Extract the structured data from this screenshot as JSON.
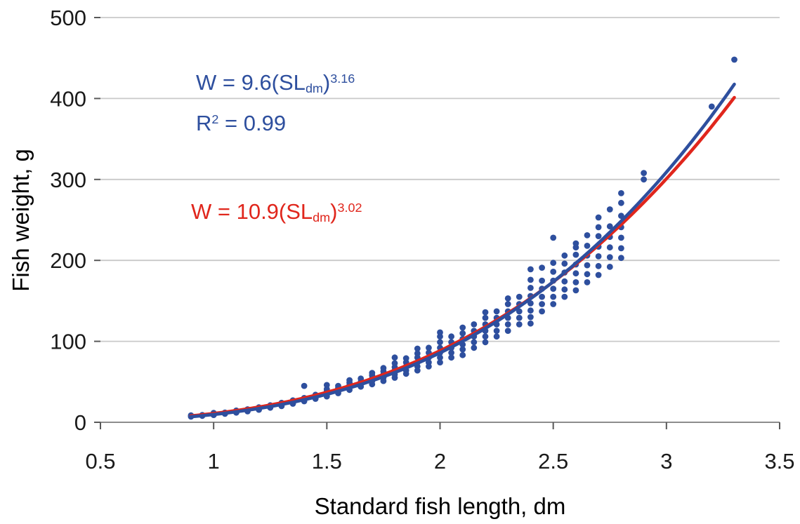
{
  "chart_data": {
    "type": "scatter",
    "title": "",
    "xlabel": "Standard fish length, dm",
    "ylabel": "Fish weight, g",
    "xlim": [
      0.5,
      3.5
    ],
    "ylim": [
      0,
      500
    ],
    "x_ticks": [
      0.5,
      1,
      1.5,
      2,
      2.5,
      3,
      3.5
    ],
    "x_tick_labels": [
      "0.5",
      "1",
      "1.5",
      "2",
      "2.5",
      "3",
      "3.5"
    ],
    "y_ticks": [
      0,
      100,
      200,
      300,
      400,
      500
    ],
    "y_tick_labels": [
      "0",
      "100",
      "200",
      "300",
      "400",
      "500"
    ],
    "grid": "horizontal",
    "legend": "none",
    "annotation_texts": [
      "W = 9.6(SLdm)^3.16",
      "R^2 = 0.99",
      "W = 10.9(SLdm)^3.02"
    ],
    "series": [
      {
        "name": "fish-observations",
        "type": "scatter",
        "color": "#2e4f9e",
        "marker": "circle",
        "points": [
          [
            0.9,
            7
          ],
          [
            0.9,
            8.5
          ],
          [
            0.95,
            8
          ],
          [
            0.95,
            9
          ],
          [
            1.0,
            9
          ],
          [
            1.0,
            10
          ],
          [
            1.0,
            11.5
          ],
          [
            1.05,
            10.5
          ],
          [
            1.05,
            12
          ],
          [
            1.1,
            12
          ],
          [
            1.1,
            13
          ],
          [
            1.1,
            14.5
          ],
          [
            1.15,
            13.5
          ],
          [
            1.15,
            15
          ],
          [
            1.15,
            16
          ],
          [
            1.2,
            15.5
          ],
          [
            1.2,
            17
          ],
          [
            1.2,
            18.5
          ],
          [
            1.25,
            18
          ],
          [
            1.25,
            19.5
          ],
          [
            1.25,
            21
          ],
          [
            1.3,
            20
          ],
          [
            1.3,
            22
          ],
          [
            1.3,
            24
          ],
          [
            1.35,
            23
          ],
          [
            1.35,
            25
          ],
          [
            1.35,
            27
          ],
          [
            1.4,
            26
          ],
          [
            1.4,
            28
          ],
          [
            1.4,
            30
          ],
          [
            1.4,
            45
          ],
          [
            1.45,
            29
          ],
          [
            1.45,
            31.5
          ],
          [
            1.45,
            34
          ],
          [
            1.5,
            32
          ],
          [
            1.5,
            35
          ],
          [
            1.5,
            38
          ],
          [
            1.5,
            41
          ],
          [
            1.5,
            46
          ],
          [
            1.55,
            36
          ],
          [
            1.55,
            39
          ],
          [
            1.55,
            42
          ],
          [
            1.55,
            45
          ],
          [
            1.6,
            40
          ],
          [
            1.6,
            43
          ],
          [
            1.6,
            46
          ],
          [
            1.6,
            49
          ],
          [
            1.6,
            52
          ],
          [
            1.65,
            44
          ],
          [
            1.65,
            47
          ],
          [
            1.65,
            50
          ],
          [
            1.65,
            54
          ],
          [
            1.7,
            47
          ],
          [
            1.7,
            51
          ],
          [
            1.7,
            54
          ],
          [
            1.7,
            58
          ],
          [
            1.7,
            61
          ],
          [
            1.75,
            51
          ],
          [
            1.75,
            55
          ],
          [
            1.75,
            59
          ],
          [
            1.75,
            63
          ],
          [
            1.75,
            67
          ],
          [
            1.8,
            55
          ],
          [
            1.8,
            59
          ],
          [
            1.8,
            64
          ],
          [
            1.8,
            68
          ],
          [
            1.8,
            73
          ],
          [
            1.8,
            80
          ],
          [
            1.85,
            60
          ],
          [
            1.85,
            64
          ],
          [
            1.85,
            69
          ],
          [
            1.85,
            74
          ],
          [
            1.85,
            79
          ],
          [
            1.9,
            64
          ],
          [
            1.9,
            69
          ],
          [
            1.9,
            74
          ],
          [
            1.9,
            80
          ],
          [
            1.9,
            85
          ],
          [
            1.9,
            91
          ],
          [
            1.95,
            69
          ],
          [
            1.95,
            74
          ],
          [
            1.95,
            80
          ],
          [
            1.95,
            86
          ],
          [
            1.95,
            92
          ],
          [
            2.0,
            74
          ],
          [
            2.0,
            80
          ],
          [
            2.0,
            86
          ],
          [
            2.0,
            92
          ],
          [
            2.0,
            99
          ],
          [
            2.0,
            106
          ],
          [
            2.0,
            111
          ],
          [
            2.05,
            80
          ],
          [
            2.05,
            86
          ],
          [
            2.05,
            92
          ],
          [
            2.05,
            99
          ],
          [
            2.05,
            106
          ],
          [
            2.1,
            83
          ],
          [
            2.1,
            90
          ],
          [
            2.1,
            96
          ],
          [
            2.1,
            103
          ],
          [
            2.1,
            110
          ],
          [
            2.1,
            117
          ],
          [
            2.15,
            92
          ],
          [
            2.15,
            99
          ],
          [
            2.15,
            106
          ],
          [
            2.15,
            113
          ],
          [
            2.15,
            121
          ],
          [
            2.2,
            99
          ],
          [
            2.2,
            106
          ],
          [
            2.2,
            113
          ],
          [
            2.2,
            121
          ],
          [
            2.2,
            129
          ],
          [
            2.2,
            136
          ],
          [
            2.25,
            106
          ],
          [
            2.25,
            113
          ],
          [
            2.25,
            121
          ],
          [
            2.25,
            129
          ],
          [
            2.25,
            137
          ],
          [
            2.3,
            113
          ],
          [
            2.3,
            121
          ],
          [
            2.3,
            129
          ],
          [
            2.3,
            137
          ],
          [
            2.3,
            146
          ],
          [
            2.3,
            153
          ],
          [
            2.35,
            121
          ],
          [
            2.35,
            129
          ],
          [
            2.35,
            137
          ],
          [
            2.35,
            146
          ],
          [
            2.35,
            155
          ],
          [
            2.4,
            122
          ],
          [
            2.4,
            130
          ],
          [
            2.4,
            138
          ],
          [
            2.4,
            147
          ],
          [
            2.4,
            156
          ],
          [
            2.4,
            166
          ],
          [
            2.4,
            176
          ],
          [
            2.4,
            189
          ],
          [
            2.45,
            137
          ],
          [
            2.45,
            146
          ],
          [
            2.45,
            155
          ],
          [
            2.45,
            165
          ],
          [
            2.45,
            175
          ],
          [
            2.45,
            191
          ],
          [
            2.5,
            146
          ],
          [
            2.5,
            155
          ],
          [
            2.5,
            165
          ],
          [
            2.5,
            175
          ],
          [
            2.5,
            186
          ],
          [
            2.5,
            197
          ],
          [
            2.5,
            228
          ],
          [
            2.55,
            155
          ],
          [
            2.55,
            164
          ],
          [
            2.55,
            174
          ],
          [
            2.55,
            185
          ],
          [
            2.55,
            196
          ],
          [
            2.55,
            206
          ],
          [
            2.6,
            163
          ],
          [
            2.6,
            173
          ],
          [
            2.6,
            184
          ],
          [
            2.6,
            195
          ],
          [
            2.6,
            207
          ],
          [
            2.6,
            216
          ],
          [
            2.6,
            221
          ],
          [
            2.65,
            173
          ],
          [
            2.65,
            183
          ],
          [
            2.65,
            194
          ],
          [
            2.65,
            206
          ],
          [
            2.65,
            218
          ],
          [
            2.65,
            231
          ],
          [
            2.7,
            182
          ],
          [
            2.7,
            193
          ],
          [
            2.7,
            205
          ],
          [
            2.7,
            217
          ],
          [
            2.7,
            230
          ],
          [
            2.7,
            241
          ],
          [
            2.7,
            253
          ],
          [
            2.75,
            192
          ],
          [
            2.75,
            204
          ],
          [
            2.75,
            216
          ],
          [
            2.75,
            229
          ],
          [
            2.75,
            242
          ],
          [
            2.75,
            263
          ],
          [
            2.8,
            203
          ],
          [
            2.8,
            215
          ],
          [
            2.8,
            228
          ],
          [
            2.8,
            241
          ],
          [
            2.8,
            255
          ],
          [
            2.8,
            271
          ],
          [
            2.8,
            283
          ],
          [
            2.9,
            300
          ],
          [
            2.9,
            308
          ],
          [
            3.2,
            390
          ],
          [
            3.3,
            448
          ]
        ]
      },
      {
        "name": "power-fit-red",
        "type": "power_curve",
        "color": "#e0261c",
        "coefficient": 10.9,
        "exponent": 3.02,
        "x_range": [
          0.9,
          3.3
        ],
        "equation_text": "W = 10.9(SLdm)^3.02"
      },
      {
        "name": "power-fit-blue",
        "type": "power_curve",
        "color": "#2e4f9e",
        "coefficient": 9.6,
        "exponent": 3.16,
        "r_squared": 0.99,
        "x_range": [
          0.9,
          3.3
        ],
        "equation_text": "W = 9.6(SLdm)^3.16"
      }
    ]
  },
  "axes": {
    "xlabel": "Standard fish length, dm",
    "ylabel": "Fish weight, g"
  },
  "annotations": {
    "blue_eq": {
      "pre": "W = 9.6(SL",
      "sub": "dm",
      "close": ")",
      "sup": "3.16"
    },
    "r2": {
      "base": "R",
      "sup": "2",
      "rest": " = 0.99"
    },
    "red_eq": {
      "pre": "W = 10.9(SL",
      "sub": "dm",
      "close": ")",
      "sup": "3.02"
    }
  },
  "colors": {
    "blue": "#2e4f9e",
    "red": "#e0261c",
    "gridline": "#c9c9c9",
    "axis_line": "#8c8c8c",
    "tick_mark": "#595959",
    "tick_text": "#1a1a1a"
  }
}
